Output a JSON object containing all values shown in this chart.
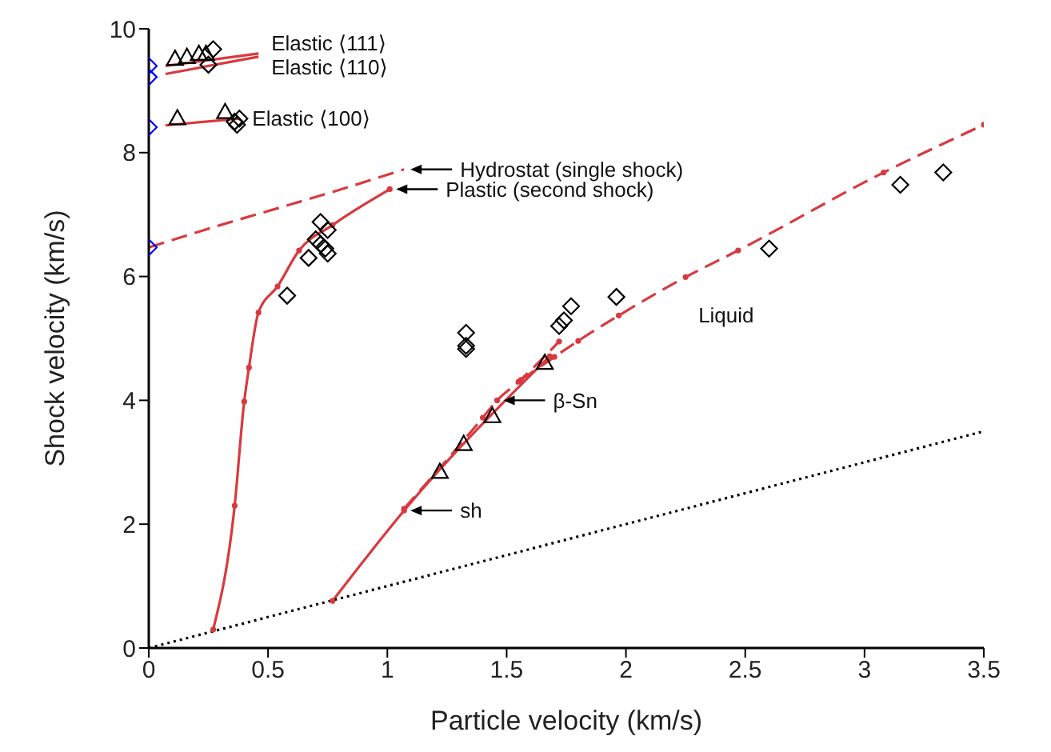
{
  "chart_data": {
    "type": "line",
    "xlabel": "Particle velocity (km/s)",
    "ylabel": "Shock velocity (km/s)",
    "xlim": [
      0,
      3.5
    ],
    "ylim": [
      0,
      10
    ],
    "xticks": [
      0,
      0.5,
      1,
      1.5,
      2,
      2.5,
      3,
      3.5
    ],
    "yticks": [
      0,
      2,
      4,
      6,
      8,
      10
    ],
    "grid": false,
    "legend": false,
    "series": [
      {
        "name": "Elastic ⟨111⟩",
        "color": "#d9393e",
        "marker": "none",
        "line_style": "solid",
        "x": [
          0.07,
          0.46
        ],
        "values": [
          9.4,
          9.6
        ]
      },
      {
        "name": "Elastic ⟨110⟩",
        "color": "#d9393e",
        "marker": "none",
        "line_style": "solid",
        "x": [
          0.07,
          0.46
        ],
        "values": [
          9.27,
          9.55
        ]
      },
      {
        "name": "Elastic ⟨100⟩",
        "color": "#d9393e",
        "marker": "none",
        "line_style": "solid",
        "x": [
          0.07,
          0.38
        ],
        "values": [
          8.44,
          8.55
        ]
      },
      {
        "color": "#d9393e",
        "marker": "none",
        "line_style": "dashed",
        "x": [
          0,
          0.3,
          0.6,
          0.8,
          1.07
        ],
        "values": [
          6.47,
          6.83,
          7.17,
          7.4,
          7.73
        ]
      },
      {
        "color": "#d9393e",
        "marker": "circle",
        "line_style": "solid",
        "x": [
          0.27,
          0.36,
          0.4,
          0.42,
          0.46,
          0.54,
          0.63,
          0.77,
          1.01
        ],
        "values": [
          0.3,
          2.3,
          3.98,
          4.53,
          5.42,
          5.84,
          6.42,
          6.83,
          7.41
        ]
      },
      {
        "color": "#d9393e",
        "marker": "circle",
        "line_style": "solid",
        "x": [
          0.77,
          1.07,
          1.68
        ],
        "values": [
          0.76,
          2.22,
          4.71
        ]
      },
      {
        "color": "#d9393e",
        "marker": "circle",
        "line_style": "dashed",
        "x": [
          1.07,
          1.4,
          1.46,
          1.55,
          1.72
        ],
        "values": [
          2.25,
          3.72,
          4.0,
          4.3,
          4.95
        ]
      },
      {
        "name": "Liquid",
        "color": "#d9393e",
        "marker": "circle",
        "line_style": "dashed",
        "x": [
          1.56,
          1.7,
          1.8,
          1.97,
          2.25,
          2.47,
          3.08,
          3.5
        ],
        "values": [
          4.33,
          4.7,
          4.96,
          5.37,
          5.99,
          6.42,
          7.68,
          8.45
        ]
      },
      {
        "color": "#000000",
        "marker": "none",
        "line_style": "dotted",
        "x": [
          0,
          3.5
        ],
        "values": [
          0,
          3.5
        ]
      },
      {
        "type": "scatter",
        "color": "#0000ff",
        "marker": "diamond",
        "x": [
          0,
          0,
          0,
          0
        ],
        "values": [
          9.4,
          9.22,
          8.41,
          6.47
        ]
      },
      {
        "type": "scatter",
        "color": "#000000",
        "marker": "triangle",
        "x": [
          0.11,
          0.16,
          0.21,
          0.24,
          0.12,
          0.32
        ],
        "values": [
          9.52,
          9.55,
          9.6,
          9.6,
          8.56,
          8.66
        ]
      },
      {
        "type": "scatter",
        "color": "#000000",
        "marker": "diamond",
        "x": [
          0.27,
          0.25,
          0.36,
          0.37,
          0.38,
          0.72,
          0.75,
          0.7,
          0.72,
          0.74,
          0.75,
          0.67,
          0.58,
          1.33,
          1.33,
          1.33,
          1.77,
          1.74,
          1.72,
          1.96,
          2.6,
          3.15,
          3.33
        ],
        "values": [
          9.67,
          9.42,
          8.5,
          8.45,
          8.55,
          6.88,
          6.75,
          6.6,
          6.52,
          6.45,
          6.37,
          6.3,
          5.69,
          5.09,
          4.88,
          4.83,
          5.52,
          5.29,
          5.2,
          5.67,
          6.45,
          7.48,
          7.68
        ]
      },
      {
        "type": "scatter",
        "color": "#000000",
        "marker": "triangle",
        "x": [
          1.22,
          1.32,
          1.44,
          1.66
        ],
        "values": [
          2.85,
          3.3,
          3.75,
          4.61
        ]
      }
    ],
    "annotations": [
      {
        "text": "Hydrostat (single shock)",
        "x": 1.07,
        "y": 7.73
      },
      {
        "text": "Plastic (second shock)",
        "x": 1.01,
        "y": 7.41
      },
      {
        "text": "β-Sn",
        "x": 1.46,
        "y": 4.0
      },
      {
        "text": "sh",
        "x": 1.07,
        "y": 2.22
      }
    ]
  }
}
